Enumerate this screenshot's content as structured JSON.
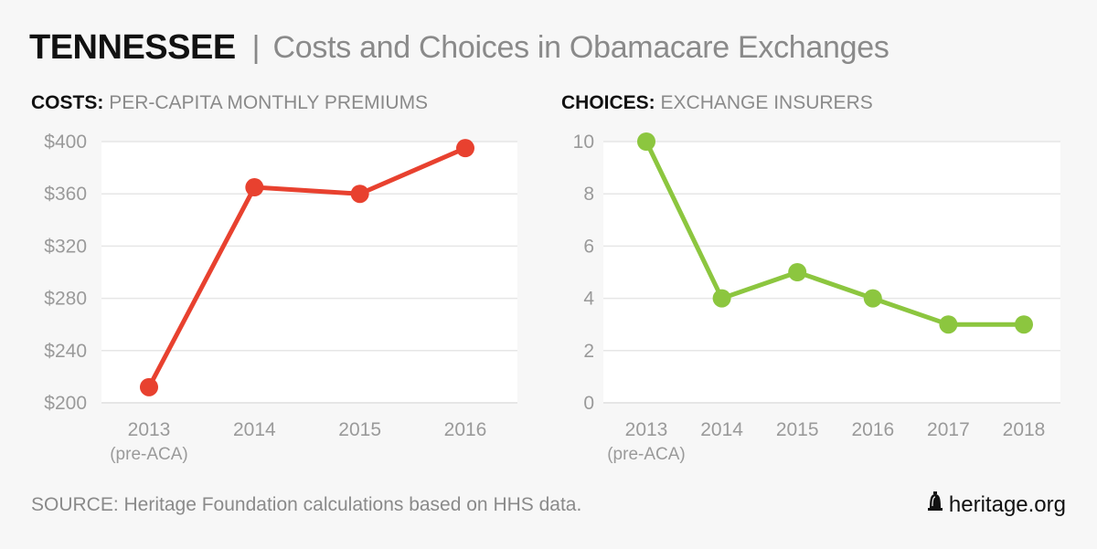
{
  "header": {
    "state": "TENNESSEE",
    "separator": "|",
    "subtitle": "Costs and Choices in Obamacare Exchanges"
  },
  "footer": {
    "source": "SOURCE: Heritage Foundation calculations based on HHS data.",
    "brand": "heritage.org",
    "brand_icon": "liberty-bell-icon"
  },
  "colors": {
    "costs_line": "#e8412f",
    "choices_line": "#8cc63f",
    "grid": "#e6e6e6",
    "plot_bg": "#ffffff",
    "page_bg": "#f7f7f7"
  },
  "chart_data": [
    {
      "type": "line",
      "title_bold": "COSTS:",
      "title": "PER-CAPITA MONTHLY PREMIUMS",
      "xlabel": "",
      "ylabel": "",
      "categories": [
        "2013",
        "2014",
        "2015",
        "2016"
      ],
      "category_sublabels": [
        "(pre-ACA)",
        "",
        "",
        ""
      ],
      "series": [
        {
          "name": "Per-capita monthly premiums",
          "values": [
            212,
            365,
            360,
            395
          ]
        }
      ],
      "ylim": [
        200,
        400
      ],
      "yticks": [
        200,
        240,
        280,
        320,
        360,
        400
      ],
      "ytick_labels": [
        "$200",
        "$240",
        "$280",
        "$320",
        "$360",
        "$400"
      ],
      "grid": true,
      "legend": "none"
    },
    {
      "type": "line",
      "title_bold": "CHOICES:",
      "title": "EXCHANGE INSURERS",
      "xlabel": "",
      "ylabel": "",
      "categories": [
        "2013",
        "2014",
        "2015",
        "2016",
        "2017",
        "2018"
      ],
      "category_sublabels": [
        "(pre-ACA)",
        "",
        "",
        "",
        "",
        ""
      ],
      "series": [
        {
          "name": "Exchange insurers",
          "values": [
            10,
            4,
            5,
            4,
            3,
            3
          ]
        }
      ],
      "ylim": [
        0,
        10
      ],
      "yticks": [
        0,
        2,
        4,
        6,
        8,
        10
      ],
      "ytick_labels": [
        "0",
        "2",
        "4",
        "6",
        "8",
        "10"
      ],
      "grid": true,
      "legend": "none"
    }
  ]
}
